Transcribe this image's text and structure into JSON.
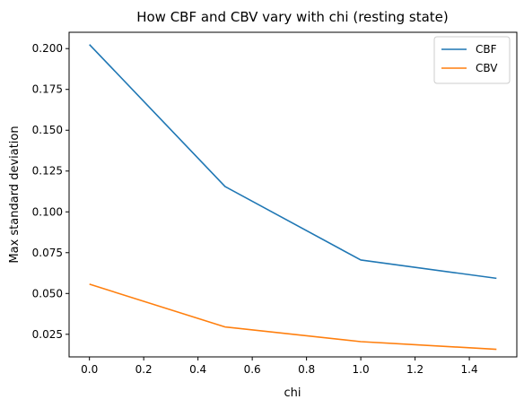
{
  "chart_data": {
    "type": "line",
    "title": "How CBF and CBV vary with chi (resting state)",
    "xlabel": "chi",
    "ylabel": "Max standard deviation",
    "x": [
      0.0,
      0.5,
      1.0,
      1.5
    ],
    "series": [
      {
        "name": "CBF",
        "values": [
          0.2025,
          0.1155,
          0.0705,
          0.0593
        ],
        "color": "#1f77b4"
      },
      {
        "name": "CBV",
        "values": [
          0.0557,
          0.0295,
          0.0205,
          0.0158
        ],
        "color": "#ff7f0e"
      }
    ],
    "xlim": [
      -0.075,
      1.575
    ],
    "ylim": [
      0.01116,
      0.21
    ],
    "xticks": [
      0.0,
      0.2,
      0.4,
      0.6,
      0.8,
      1.0,
      1.2,
      1.4
    ],
    "xtick_labels": [
      "0.0",
      "0.2",
      "0.4",
      "0.6",
      "0.8",
      "1.0",
      "1.2",
      "1.4"
    ],
    "yticks": [
      0.025,
      0.05,
      0.075,
      0.1,
      0.125,
      0.15,
      0.175,
      0.2
    ],
    "ytick_labels": [
      "0.025",
      "0.050",
      "0.075",
      "0.100",
      "0.125",
      "0.150",
      "0.175",
      "0.200"
    ],
    "grid": false,
    "legend_position": "top-right"
  }
}
